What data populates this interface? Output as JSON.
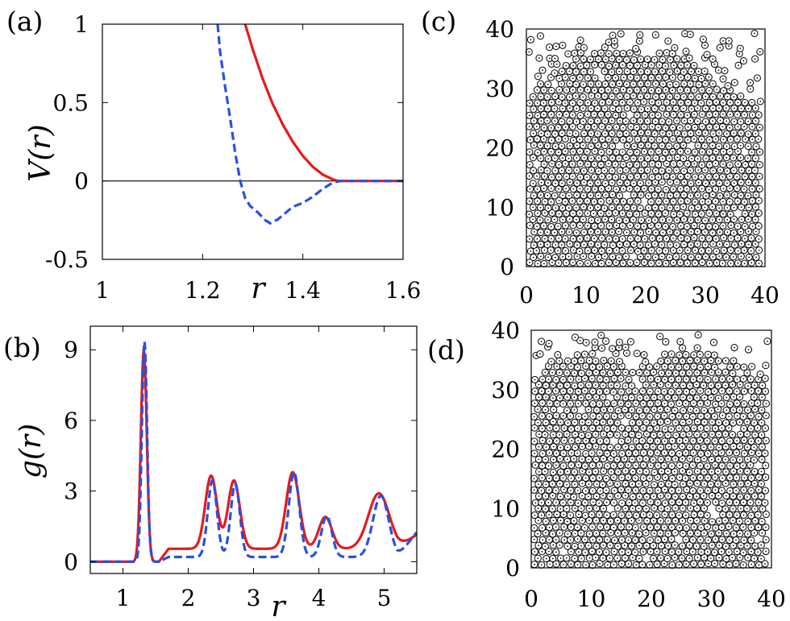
{
  "chart_data": [
    {
      "panel": "(a)",
      "type": "line",
      "xlabel": "r",
      "ylabel": "V(r)",
      "xlim": [
        1,
        1.6
      ],
      "ylim": [
        -0.5,
        1
      ],
      "x_ticks": [
        "1",
        "1.2",
        "1.4",
        "1.6"
      ],
      "y_ticks": [
        "1",
        "0.5",
        "0",
        "-0.5"
      ],
      "zero_line": true,
      "series": [
        {
          "color": "#e41a1c",
          "style": "solid",
          "points": [
            [
              1.285,
              1.0
            ],
            [
              1.3,
              0.84
            ],
            [
              1.32,
              0.65
            ],
            [
              1.34,
              0.49
            ],
            [
              1.36,
              0.36
            ],
            [
              1.38,
              0.25
            ],
            [
              1.4,
              0.16
            ],
            [
              1.42,
              0.09
            ],
            [
              1.44,
              0.04
            ],
            [
              1.46,
              0.01
            ],
            [
              1.47,
              0.0
            ],
            [
              1.6,
              0.0
            ]
          ]
        },
        {
          "color": "#2b4fe0",
          "style": "dashed",
          "points": [
            [
              1.23,
              1.0
            ],
            [
              1.235,
              0.82
            ],
            [
              1.245,
              0.6
            ],
            [
              1.255,
              0.4
            ],
            [
              1.265,
              0.18
            ],
            [
              1.275,
              0.0
            ],
            [
              1.285,
              -0.11
            ],
            [
              1.295,
              -0.16
            ],
            [
              1.31,
              -0.2
            ],
            [
              1.325,
              -0.25
            ],
            [
              1.335,
              -0.27
            ],
            [
              1.35,
              -0.245
            ],
            [
              1.365,
              -0.205
            ],
            [
              1.38,
              -0.165
            ],
            [
              1.4,
              -0.14
            ],
            [
              1.42,
              -0.1
            ],
            [
              1.44,
              -0.05
            ],
            [
              1.46,
              -0.01
            ],
            [
              1.475,
              0.0
            ],
            [
              1.6,
              0.0
            ]
          ]
        }
      ]
    },
    {
      "panel": "(b)",
      "type": "line",
      "xlabel": "r",
      "ylabel": "g(r)",
      "xlim": [
        0.5,
        5.5
      ],
      "ylim": [
        -0.5,
        10
      ],
      "x_ticks": [
        "1",
        "2",
        "3",
        "4",
        "5"
      ],
      "y_ticks": [
        "0",
        "3",
        "6",
        "9"
      ],
      "series": [
        {
          "color": "#e41a1c",
          "style": "solid",
          "peaks": [
            [
              1.32,
              9.0,
              0.045
            ],
            [
              2.35,
              3.1,
              0.09
            ],
            [
              2.7,
              2.9,
              0.09
            ],
            [
              3.6,
              3.25,
              0.1
            ],
            [
              4.1,
              1.35,
              0.1
            ],
            [
              4.92,
              2.35,
              0.16
            ]
          ],
          "baseline": 0.55,
          "baseline_start": 1.55,
          "end_value": 1.15
        },
        {
          "color": "#2b4fe0",
          "style": "dashed",
          "peaks": [
            [
              1.33,
              9.35,
              0.04
            ],
            [
              2.37,
              3.25,
              0.07
            ],
            [
              2.72,
              3.1,
              0.07
            ],
            [
              3.62,
              3.6,
              0.08
            ],
            [
              4.12,
              1.75,
              0.08
            ],
            [
              4.95,
              2.6,
              0.12
            ]
          ],
          "baseline": 0.2,
          "baseline_start": 1.55,
          "end_value": 1.25
        }
      ]
    },
    {
      "panel": "(c)",
      "type": "scatter",
      "xlim": [
        0,
        40
      ],
      "ylim": [
        0,
        40
      ],
      "x_ticks": [
        "0",
        "10",
        "20",
        "30",
        "40"
      ],
      "y_ticks": [
        "0",
        "10",
        "20",
        "30",
        "40"
      ],
      "marker": "circle with center dot",
      "particle_diameter": 1.2,
      "packing_top_profile": [
        [
          0,
          29
        ],
        [
          3,
          32
        ],
        [
          6,
          34
        ],
        [
          9,
          36
        ],
        [
          12,
          37
        ],
        [
          16,
          37
        ],
        [
          20,
          36
        ],
        [
          23,
          37
        ],
        [
          26,
          36
        ],
        [
          29,
          34
        ],
        [
          32,
          32
        ],
        [
          35,
          30
        ],
        [
          38,
          28
        ],
        [
          40,
          26
        ]
      ],
      "seed": 7
    },
    {
      "panel": "(d)",
      "type": "scatter",
      "xlim": [
        0,
        40
      ],
      "ylim": [
        0,
        40
      ],
      "x_ticks": [
        "0",
        "10",
        "20",
        "30",
        "40"
      ],
      "y_ticks": [
        "0",
        "10",
        "20",
        "30",
        "40"
      ],
      "marker": "circle with center dot",
      "particle_diameter": 1.2,
      "packing_top_profile": [
        [
          0,
          32
        ],
        [
          3,
          35
        ],
        [
          6,
          36
        ],
        [
          9,
          37
        ],
        [
          12,
          36
        ],
        [
          16,
          34
        ],
        [
          20,
          35
        ],
        [
          23,
          37
        ],
        [
          26,
          38
        ],
        [
          29,
          37
        ],
        [
          32,
          36
        ],
        [
          35,
          35
        ],
        [
          38,
          33
        ],
        [
          40,
          32
        ]
      ],
      "seed": 13
    }
  ]
}
